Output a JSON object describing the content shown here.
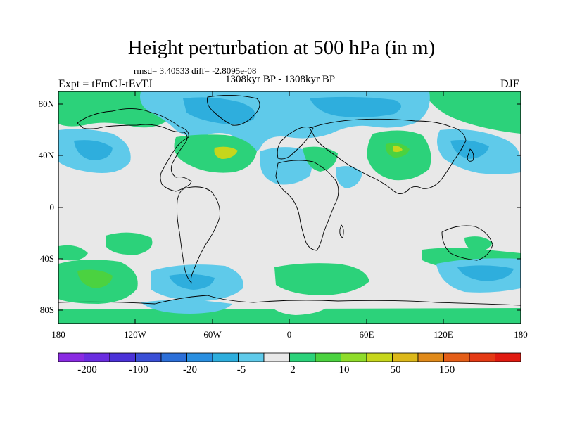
{
  "title": "Height perturbation at 500 hPa (in m)",
  "stats": "rmsd= 3.40533 diff= -2.8095e-08",
  "period": "1308kyr BP - 1308kyr BP",
  "experiment": "Expt = tFmCJ-tEvTJ",
  "season": "DJF",
  "lat_ticks": [
    "80N",
    "40N",
    "0",
    "40S",
    "80S"
  ],
  "lon_ticks": [
    "180",
    "120W",
    "60W",
    "0",
    "60E",
    "120E",
    "180"
  ],
  "colorbar": {
    "colors": [
      "#8a2be2",
      "#6a2de0",
      "#4b32d8",
      "#3a4fd6",
      "#2c6fd8",
      "#2a8fe0",
      "#2eaedd",
      "#5fcaea",
      "#e8e8e8",
      "#2cd27a",
      "#4bd240",
      "#8fdc2a",
      "#c6d61c",
      "#dcb81a",
      "#e08a1a",
      "#e45e18",
      "#e43a14",
      "#e01a10"
    ],
    "labels": [
      "-200",
      "-100",
      "-20",
      "-5",
      "2",
      "10",
      "50",
      "150"
    ]
  },
  "colors": {
    "background_field": "#e8e8e8",
    "light_blue": "#5fcaea",
    "mid_blue": "#2eaedd",
    "green": "#2cd27a",
    "bright_green": "#4bd240",
    "yellow_green": "#c6d61c"
  }
}
